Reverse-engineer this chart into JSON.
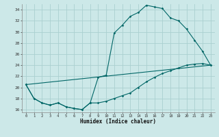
{
  "xlabel": "Humidex (Indice chaleur)",
  "bg_color": "#cce8e8",
  "grid_color": "#aad0d0",
  "line_color": "#006666",
  "ylim": [
    15.5,
    35.0
  ],
  "xlim": [
    -0.5,
    23.5
  ],
  "yticks": [
    16,
    18,
    20,
    22,
    24,
    26,
    28,
    30,
    32,
    34
  ],
  "xticks": [
    0,
    1,
    2,
    3,
    4,
    5,
    6,
    7,
    8,
    9,
    10,
    11,
    12,
    13,
    14,
    15,
    16,
    17,
    18,
    19,
    20,
    21,
    22,
    23
  ],
  "line1_x": [
    0,
    1,
    2,
    3,
    4,
    5,
    6,
    7,
    8,
    9,
    10,
    11,
    12,
    13,
    14,
    15,
    16,
    17,
    18,
    19,
    20,
    21,
    22,
    23
  ],
  "line1_y": [
    20.5,
    18.0,
    17.2,
    16.8,
    17.2,
    16.5,
    16.2,
    16.0,
    17.2,
    17.2,
    17.5,
    18.0,
    18.5,
    19.0,
    20.0,
    21.0,
    21.8,
    22.5,
    23.0,
    23.5,
    24.0,
    24.2,
    24.3,
    24.0
  ],
  "line2_x": [
    0,
    1,
    2,
    3,
    4,
    5,
    6,
    7,
    8,
    9,
    10,
    11,
    12,
    13,
    14,
    15,
    16,
    17,
    18,
    19,
    20,
    21,
    22,
    23
  ],
  "line2_y": [
    20.5,
    18.0,
    17.2,
    16.8,
    17.2,
    16.5,
    16.2,
    16.0,
    17.2,
    21.8,
    22.2,
    29.8,
    31.2,
    32.8,
    33.5,
    34.8,
    34.5,
    34.2,
    32.5,
    32.0,
    30.5,
    28.5,
    26.5,
    24.0
  ],
  "line3_x": [
    0,
    23
  ],
  "line3_y": [
    20.5,
    24.0
  ]
}
